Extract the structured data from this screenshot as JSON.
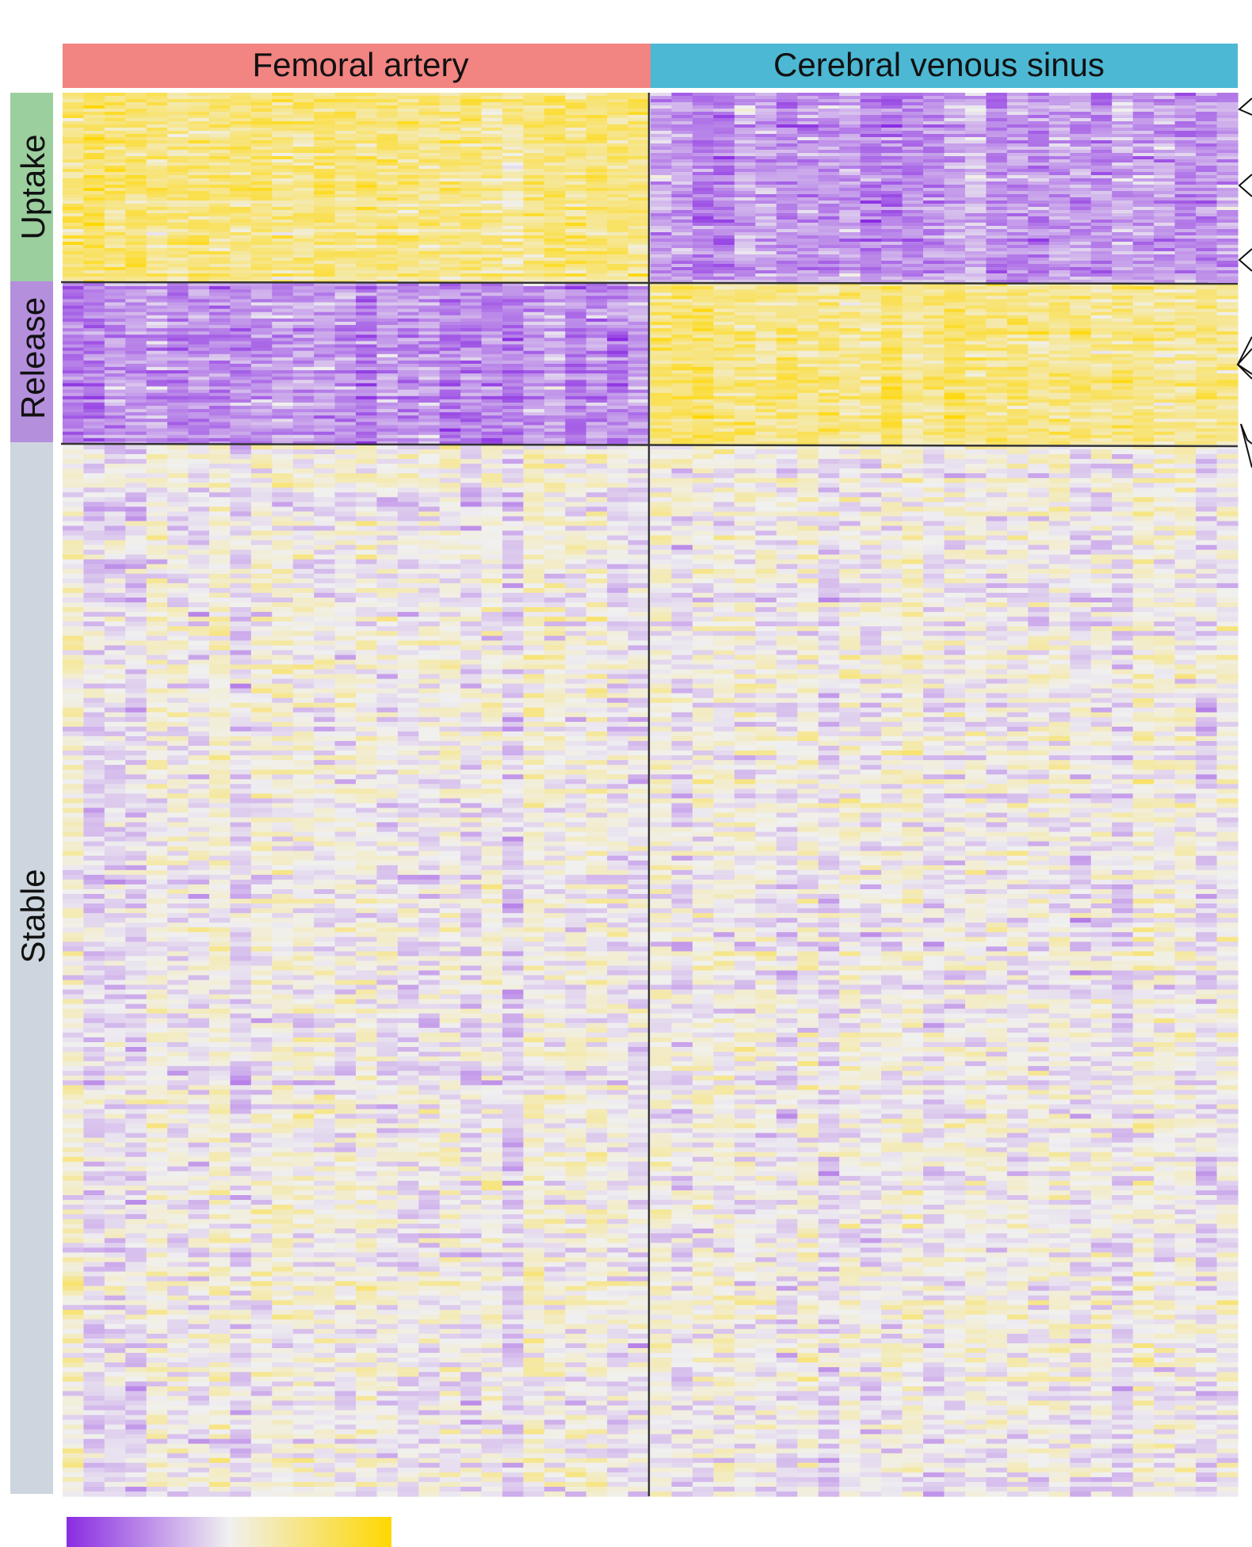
{
  "chart_data": {
    "type": "heatmap",
    "column_groups": [
      {
        "label": "Femoral artery",
        "color": "#f28482",
        "columns": 28
      },
      {
        "label": "Cerebral venous sinus",
        "color": "#4cb8d4",
        "columns": 28
      }
    ],
    "row_groups": [
      {
        "label": "Uptake",
        "color": "#9bcf9e",
        "pattern": [
          "high",
          "low"
        ]
      },
      {
        "label": "Release",
        "color": "#b48fdc",
        "pattern": [
          "low",
          "high"
        ]
      },
      {
        "label": "Stable",
        "color": "#cdd6de",
        "pattern": [
          "mixed",
          "mixed"
        ]
      }
    ],
    "colorscale": {
      "low": "#8a2be2",
      "mid": "#f0f0f0",
      "high": "#ffd700"
    }
  }
}
